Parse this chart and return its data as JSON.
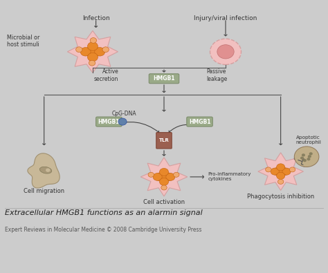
{
  "bg_color": "#ffffff",
  "title": "Extracellular HMGB1 functions as an alarmin signal",
  "subtitle": "Expert Reviews in Molecular Medicine © 2008 Cambridge University Press",
  "labels": {
    "infection": "Infection",
    "microbial": "Microbial or\nhost stimuli",
    "injury": "Injury/viral infection",
    "active_secretion": "Active\nsecretion",
    "passive_leakage": "Passive\nleakage",
    "hmgb1_main": "HMGB1",
    "cpg_dna": "CpG-DNA",
    "hmgb1_cpg": "HMGB1",
    "hmgb1_tlr": "HMGB1",
    "tlr": "TLR",
    "pro_inflam": "Pro-inflammatory\ncytokines",
    "cell_migration": "Cell migration",
    "cell_activation": "Cell activation",
    "phagocytosis": "Phagocytosis inhibition",
    "apoptotic": "Apoptotic\nneutrophil"
  },
  "colors": {
    "cell_fill_pink": "#f2c0c0",
    "cell_edge_pink": "#d4a0a0",
    "cell_fill_orange": "#e8882a",
    "cell_fill_orange_light": "#f0aa70",
    "cell_fill_tan": "#c8b898",
    "cell_fill_dark_tan": "#a09060",
    "hmgb1_box": "#9aaa88",
    "tlr_fill": "#9b6050",
    "arrow_color": "#444444",
    "text_color": "#333333",
    "bg_inner": "#f9f9f6",
    "border_color": "#cccccc",
    "cpg_dot": "#6080aa",
    "neutrophil_fill": "#c0ae88",
    "neutrophil_spot": "#888060",
    "line_color": "#555555"
  }
}
